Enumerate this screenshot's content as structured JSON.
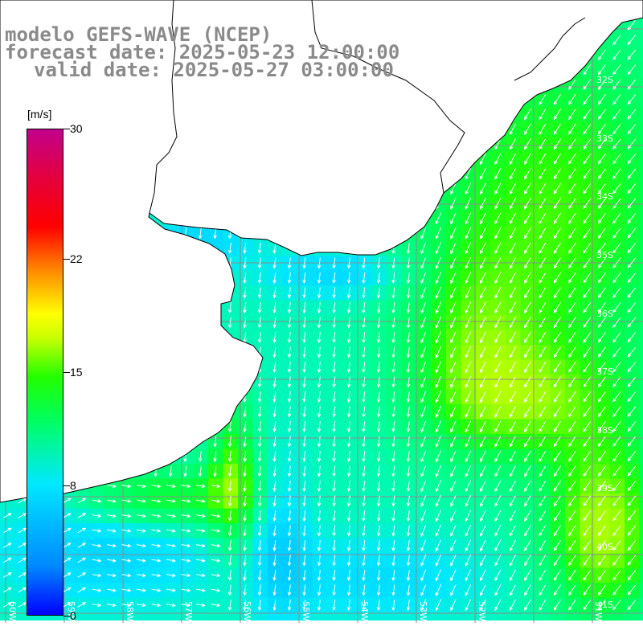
{
  "titles": {
    "model": "modelo GEFS-WAVE (NCEP)",
    "forecast": "forecast date: 2025-05-23 12:00:00",
    "valid": "valid date: 2025-05-27 03:00:00"
  },
  "colorbar": {
    "unit": "[m/s]",
    "ticks": [
      "30",
      "22",
      "15",
      "8",
      "0"
    ],
    "tick_values": [
      30,
      22,
      15,
      8,
      0
    ],
    "colors": [
      "#0000ff",
      "#00e8ff",
      "#22ff00",
      "#ffff00",
      "#ff0000",
      "#c2008c"
    ]
  },
  "map": {
    "lat_labels": [
      "32S",
      "33S",
      "34S",
      "35S",
      "36S",
      "37S",
      "38S",
      "39S",
      "40S",
      "41S"
    ],
    "lon_labels": [
      "60W",
      "59W",
      "58W",
      "57W",
      "56W",
      "55W",
      "54W",
      "53W",
      "52W",
      "51W"
    ],
    "lat_range": [
      -41.4,
      -30.9
    ],
    "lon_range": [
      -61.0,
      -50.1
    ],
    "land_color": "#ffffff",
    "coast_color": "#000000",
    "grid_color": "#8c8c8c"
  }
}
